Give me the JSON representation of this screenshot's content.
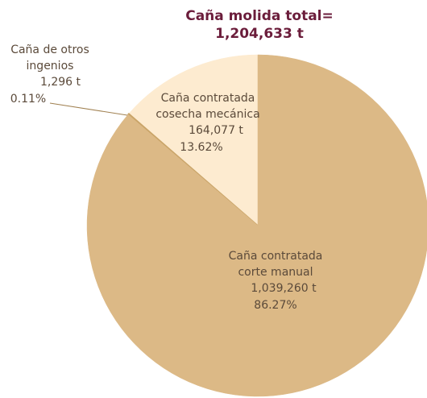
{
  "chart_data": {
    "type": "pie",
    "title": "Caña molida total=",
    "subtitle": "1,204,633 t",
    "categories": [
      [
        "Caña contratada",
        "cosecha mecánica"
      ],
      [
        "Caña de otros",
        "ingenios"
      ],
      [
        "Caña contratada",
        "corte manual"
      ]
    ],
    "values": [
      13.62,
      0.11,
      86.27
    ],
    "value_labels": [
      "13.62%",
      "0.11%",
      "86.27%"
    ],
    "tonnage_labels": [
      "164,077 t",
      "1,296 t",
      "1,039,260 t"
    ],
    "colors": [
      "#fdebd0",
      "#c9a468",
      "#dcb986"
    ]
  }
}
